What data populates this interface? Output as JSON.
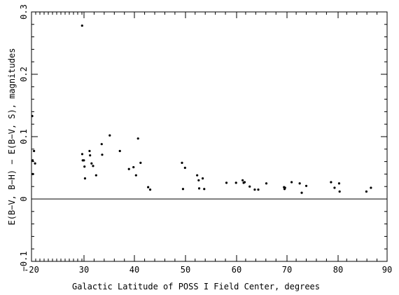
{
  "chart_data": {
    "type": "scatter",
    "xlabel": "Galactic Latitude of POSS I Field Center, degrees",
    "ylabel": "E(B−V, B−H) − E(B−V, S), magnitudes",
    "xlim": [
      -20,
      90
    ],
    "ylim": [
      -0.1,
      0.3
    ],
    "x_ticks": [
      -20,
      30,
      40,
      50,
      60,
      70,
      80,
      90
    ],
    "x_tick_labels": [
      "-20",
      "30",
      "40",
      "50",
      "60",
      "70",
      "80",
      "90"
    ],
    "y_ticks": [
      -0.1,
      0,
      0.1,
      0.2,
      0.3
    ],
    "y_tick_labels": [
      "−0.1",
      "0",
      "0.1",
      "0.2",
      "0.3"
    ],
    "zero_line": 0,
    "grid": false,
    "points": [
      [
        -19.3,
        0.133
      ],
      [
        -18.9,
        0.062
      ],
      [
        -18.7,
        0.04
      ],
      [
        -17.6,
        0.077
      ],
      [
        -16.6,
        0.057
      ],
      [
        28.2,
        0.278
      ],
      [
        28.3,
        0.072
      ],
      [
        28.8,
        0.062
      ],
      [
        29.9,
        0.062
      ],
      [
        30.1,
        0.052
      ],
      [
        30.2,
        0.033
      ],
      [
        31.1,
        0.077
      ],
      [
        31.2,
        0.07
      ],
      [
        31.5,
        0.057
      ],
      [
        31.8,
        0.053
      ],
      [
        32.4,
        0.038
      ],
      [
        33.5,
        0.088
      ],
      [
        33.6,
        0.071
      ],
      [
        35.1,
        0.102
      ],
      [
        37.1,
        0.077
      ],
      [
        38.9,
        0.048
      ],
      [
        39.8,
        0.051
      ],
      [
        40.3,
        0.038
      ],
      [
        40.7,
        0.097
      ],
      [
        41.2,
        0.058
      ],
      [
        42.7,
        0.019
      ],
      [
        43.1,
        0.015
      ],
      [
        49.4,
        0.058
      ],
      [
        49.6,
        0.016
      ],
      [
        50.0,
        0.05
      ],
      [
        52.4,
        0.038
      ],
      [
        52.7,
        0.03
      ],
      [
        52.8,
        0.017
      ],
      [
        53.5,
        0.033
      ],
      [
        53.8,
        0.016
      ],
      [
        58.2,
        0.026
      ],
      [
        60.1,
        0.026
      ],
      [
        61.4,
        0.03
      ],
      [
        61.6,
        0.026
      ],
      [
        61.8,
        0.027
      ],
      [
        62.8,
        0.02
      ],
      [
        63.8,
        0.015
      ],
      [
        64.5,
        0.015
      ],
      [
        66.1,
        0.025
      ],
      [
        69.6,
        0.019
      ],
      [
        69.7,
        0.016
      ],
      [
        69.8,
        0.018
      ],
      [
        71.1,
        0.027
      ],
      [
        72.7,
        0.025
      ],
      [
        73.1,
        0.01
      ],
      [
        74.0,
        0.021
      ],
      [
        78.9,
        0.027
      ],
      [
        79.6,
        0.018
      ],
      [
        80.5,
        0.025
      ],
      [
        80.6,
        0.012
      ],
      [
        85.9,
        0.012
      ],
      [
        86.8,
        0.018
      ]
    ]
  }
}
